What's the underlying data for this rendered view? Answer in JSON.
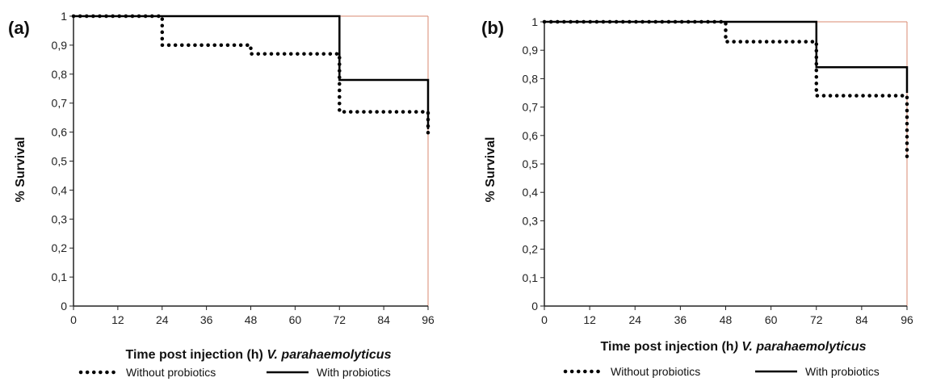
{
  "chart_data": [
    {
      "type": "line",
      "panel_label": "(a)",
      "ylabel": "% Survival",
      "xlabel_plain": "Time post injection (h) ",
      "xlabel_italic": "V. parahaemolyticus",
      "x_ticks": [
        "0",
        "12",
        "24",
        "36",
        "48",
        "60",
        "72",
        "84",
        "96"
      ],
      "y_ticks": [
        "0",
        "0,1",
        "0,2",
        "0,3",
        "0,4",
        "0,5",
        "0,6",
        "0,7",
        "0,8",
        "0,9",
        "1"
      ],
      "xlim": [
        0,
        96
      ],
      "ylim": [
        0,
        1
      ],
      "series": [
        {
          "name": "Without probiotics",
          "style": "dotted",
          "x": [
            0,
            24,
            24,
            48,
            48,
            72,
            72,
            96,
            96
          ],
          "y": [
            1,
            1,
            0.9,
            0.9,
            0.87,
            0.87,
            0.67,
            0.67,
            0.58
          ]
        },
        {
          "name": "With probiotics",
          "style": "solid",
          "x": [
            0,
            72,
            72,
            96,
            96
          ],
          "y": [
            1,
            1,
            0.78,
            0.78,
            0.61
          ]
        }
      ],
      "legend": [
        "Without probiotics",
        "With probiotics"
      ]
    },
    {
      "type": "line",
      "panel_label": "(b)",
      "ylabel": "% Survival",
      "xlabel_plain": "Time post injection (h",
      "xlabel_italic": ") V. parahaemolyticus",
      "x_ticks": [
        "0",
        "12",
        "24",
        "36",
        "48",
        "60",
        "72",
        "84",
        "96"
      ],
      "y_ticks": [
        "0",
        "0,1",
        "0,2",
        "0,3",
        "0,4",
        "0,5",
        "0,6",
        "0,7",
        "0,8",
        "0,9",
        "1"
      ],
      "xlim": [
        0,
        96
      ],
      "ylim": [
        0,
        1
      ],
      "series": [
        {
          "name": "Without probiotics",
          "style": "dotted",
          "x": [
            0,
            48,
            48,
            72,
            72,
            96,
            96
          ],
          "y": [
            1,
            1,
            0.93,
            0.93,
            0.74,
            0.74,
            0.51
          ]
        },
        {
          "name": "With probiotics",
          "style": "solid",
          "x": [
            0,
            72,
            72,
            96,
            96
          ],
          "y": [
            1,
            1,
            0.84,
            0.84,
            0.75
          ]
        }
      ],
      "legend": [
        "Without probiotics",
        "With probiotics"
      ]
    }
  ],
  "colors": {
    "axis": "#222222",
    "series": "#000000",
    "top_frame": "#d98a70"
  }
}
